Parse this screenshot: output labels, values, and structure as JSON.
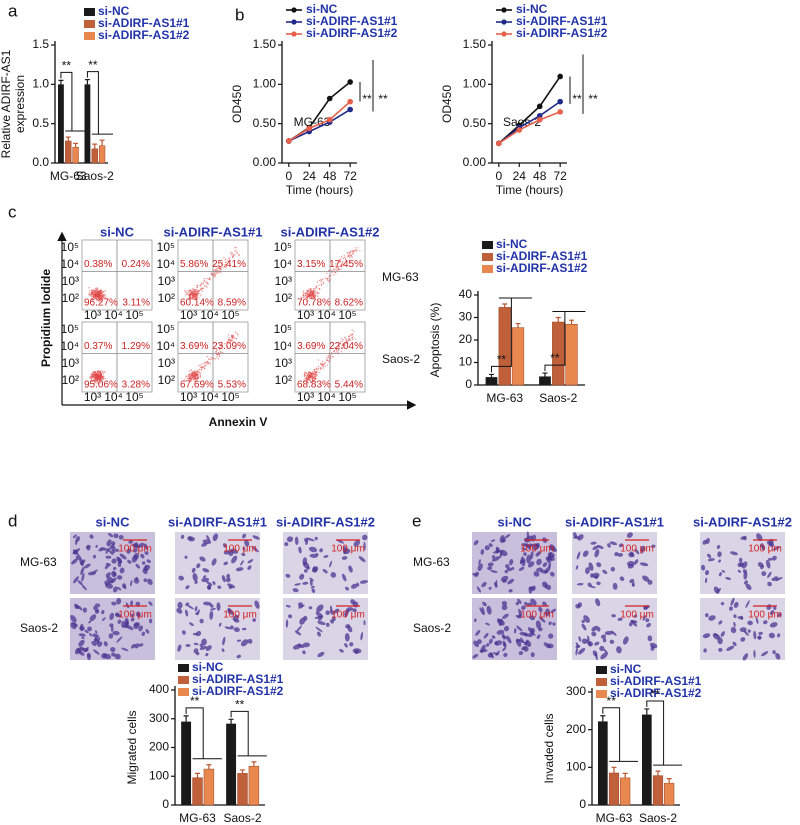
{
  "panels": [
    "a",
    "b",
    "c",
    "d",
    "e"
  ],
  "chart_data": [
    {
      "type": "bar",
      "ylabel": [
        "Relative ADIRF-AS1",
        "expression"
      ],
      "categories": [
        "MG-63",
        "Saos-2"
      ],
      "series": [
        {
          "name": "si-NC",
          "color": "#1a1a1a",
          "values": [
            1.0,
            1.0
          ],
          "errors": [
            0.05,
            0.06
          ]
        },
        {
          "name": "si-ADIRF-AS1#1",
          "color": "#c0603a",
          "values": [
            0.28,
            0.18
          ],
          "errors": [
            0.05,
            0.06
          ]
        },
        {
          "name": "si-ADIRF-AS1#2",
          "color": "#e8884e",
          "values": [
            0.2,
            0.22
          ],
          "errors": [
            0.05,
            0.07
          ]
        }
      ],
      "ylim": [
        0,
        1.5
      ],
      "yticks": [
        {
          "value": 0,
          "label": "0.0"
        },
        0.5,
        {
          "value": 1,
          "label": "1.0"
        },
        1.5
      ],
      "annotations": [
        "**",
        "**"
      ]
    },
    {
      "type": "line",
      "ylabel": "OD450",
      "xlabel": "Time (hours)",
      "label": "MG-63",
      "x": [
        0,
        24,
        48,
        72
      ],
      "series": [
        {
          "name": "si-NC",
          "color": "#111111",
          "values": [
            0.28,
            0.45,
            0.82,
            1.03
          ]
        },
        {
          "name": "si-ADIRF-AS1#1",
          "color": "#1f2a8a",
          "values": [
            0.28,
            0.4,
            0.52,
            0.68
          ]
        },
        {
          "name": "si-ADIRF-AS1#2",
          "color": "#e8604a",
          "values": [
            0.28,
            0.44,
            0.55,
            0.78
          ]
        }
      ],
      "xlim": [
        -8,
        80
      ],
      "xticks": [
        0,
        24,
        48,
        72
      ],
      "ylim": [
        0,
        1.5
      ],
      "yticks": [
        {
          "value": 0,
          "label": "0.00"
        },
        {
          "value": 0.5,
          "label": "0.50"
        },
        {
          "value": 1,
          "label": "1.00"
        },
        {
          "value": 1.5,
          "label": "1.50"
        }
      ],
      "annotations": [
        "**",
        "**"
      ]
    },
    {
      "type": "line",
      "ylabel": "OD450",
      "xlabel": "Time (hours)",
      "label": "Saos-2",
      "x": [
        0,
        24,
        48,
        72
      ],
      "series": [
        {
          "name": "si-NC",
          "color": "#111111",
          "values": [
            0.25,
            0.48,
            0.72,
            1.1
          ]
        },
        {
          "name": "si-ADIRF-AS1#1",
          "color": "#1f2a8a",
          "values": [
            0.25,
            0.45,
            0.6,
            0.78
          ]
        },
        {
          "name": "si-ADIRF-AS1#2",
          "color": "#e8604a",
          "values": [
            0.25,
            0.42,
            0.55,
            0.65
          ]
        }
      ],
      "xlim": [
        -8,
        80
      ],
      "xticks": [
        0,
        24,
        48,
        72
      ],
      "ylim": [
        0,
        1.5
      ],
      "yticks": [
        {
          "value": 0,
          "label": "0.00"
        },
        {
          "value": 0.5,
          "label": "0.50"
        },
        {
          "value": 1,
          "label": "1.00"
        },
        {
          "value": 1.5,
          "label": "1.50"
        }
      ],
      "annotations": [
        "**",
        "**"
      ]
    },
    {
      "type": "bar",
      "ylabel": "Apoptosis (%)",
      "categories": [
        "MG-63",
        "Saos-2"
      ],
      "series": [
        {
          "name": "si-NC",
          "color": "#1a1a1a",
          "values": [
            3.5,
            3.8
          ],
          "errors": [
            1.2,
            1.5
          ]
        },
        {
          "name": "si-ADIRF-AS1#1",
          "color": "#c0603a",
          "values": [
            34.5,
            28
          ],
          "errors": [
            1.5,
            2
          ]
        },
        {
          "name": "si-ADIRF-AS1#2",
          "color": "#e8884e",
          "values": [
            25.5,
            27
          ],
          "errors": [
            1.8,
            1.8
          ]
        }
      ],
      "ylim": [
        0,
        40
      ],
      "yticks": [
        0,
        10,
        20,
        30,
        40
      ],
      "annotations": [
        "**",
        "**"
      ]
    },
    {
      "type": "bar",
      "ylabel": "Migrated cells",
      "categories": [
        "MG-63",
        "Saos-2"
      ],
      "series": [
        {
          "name": "si-NC",
          "color": "#1a1a1a",
          "values": [
            290,
            283
          ],
          "errors": [
            20,
            15
          ]
        },
        {
          "name": "si-ADIRF-AS1#1",
          "color": "#c0603a",
          "values": [
            95,
            110
          ],
          "errors": [
            15,
            12
          ]
        },
        {
          "name": "si-ADIRF-AS1#2",
          "color": "#e8884e",
          "values": [
            125,
            135
          ],
          "errors": [
            15,
            15
          ]
        }
      ],
      "ylim": [
        0,
        400
      ],
      "yticks": [
        0,
        100,
        200,
        300,
        400
      ],
      "annotations": [
        "**",
        "**"
      ]
    },
    {
      "type": "bar",
      "ylabel": "Invaded cells",
      "categories": [
        "MG-63",
        "Saos-2"
      ],
      "series": [
        {
          "name": "si-NC",
          "color": "#1a1a1a",
          "values": [
            222,
            240
          ],
          "errors": [
            15,
            15
          ]
        },
        {
          "name": "si-ADIRF-AS1#1",
          "color": "#c0603a",
          "values": [
            85,
            78
          ],
          "errors": [
            15,
            12
          ]
        },
        {
          "name": "si-ADIRF-AS1#2",
          "color": "#e8884e",
          "values": [
            72,
            58
          ],
          "errors": [
            12,
            12
          ]
        }
      ],
      "ylim": [
        0,
        300
      ],
      "yticks": [
        0,
        100,
        200,
        300
      ],
      "annotations": [
        "**",
        "**"
      ]
    }
  ],
  "flow": {
    "columns": [
      "si-NC",
      "si-ADIRF-AS1#1",
      "si-ADIRF-AS1#2"
    ],
    "rows": [
      "MG-63",
      "Saos-2"
    ],
    "yticks": [
      "10⁵",
      "10⁴",
      "10³",
      "10²"
    ],
    "xticks": [
      "10³",
      "10⁴",
      "10⁵"
    ],
    "xlabel": "Annexin V",
    "ylabel": "Propidium Iodide",
    "plots": [
      [
        [
          "0.38%",
          "0.24%",
          "96.27%",
          "3.11%"
        ],
        [
          "5.86%",
          "25.41%",
          "60.14%",
          "8.59%"
        ],
        [
          "3.15%",
          "17.45%",
          "70.78%",
          "8.62%"
        ]
      ],
      [
        [
          "0.37%",
          "1.29%",
          "95.06%",
          "3.28%"
        ],
        [
          "3.69%",
          "23.09%",
          "67.69%",
          "5.53%"
        ],
        [
          "3.69%",
          "22.04%",
          "68.83%",
          "5.44%"
        ]
      ]
    ]
  },
  "migration": {
    "columns": [
      "si-NC",
      "si-ADIRF-AS1#1",
      "si-ADIRF-AS1#2"
    ],
    "rows": [
      "MG-63",
      "Saos-2"
    ],
    "scale_bar": "100 μm"
  },
  "invasion": {
    "columns": [
      "si-NC",
      "si-ADIRF-AS1#1",
      "si-ADIRF-AS1#2"
    ],
    "rows": [
      "MG-63",
      "Saos-2"
    ],
    "scale_bar": "100 μm"
  }
}
